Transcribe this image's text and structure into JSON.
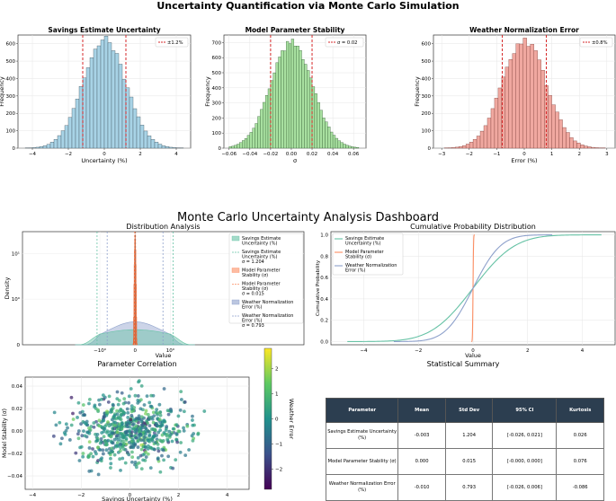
{
  "suptitle": "Uncertainty Quantification via Monte Carlo Simulation",
  "dashboard_title": "Monte Carlo Uncertainty Analysis Dashboard",
  "colors": {
    "blue_fill": "#a8d3e6",
    "blue_edge": "#3b4a55",
    "green_fill": "#a8e0a0",
    "green_edge": "#2f5a2f",
    "red_fill": "#f0a8a0",
    "red_edge": "#7a3a34",
    "vline": "#d62728",
    "teal": "#66c2a5",
    "orange": "#fc8d62",
    "purple": "#8da0cb",
    "table_header": "#2c3e50"
  },
  "chart_data": [
    {
      "id": "h1",
      "type": "bar",
      "title": "Savings Estimate Uncertainty",
      "xlabel": "Uncertainty (%)",
      "ylabel": "Frequency",
      "xlim": [
        -4.8,
        4.8
      ],
      "ylim": [
        0,
        650
      ],
      "xticks": [
        -4,
        -2,
        0,
        2,
        4
      ],
      "yticks": [
        0,
        100,
        200,
        300,
        400,
        500,
        600
      ],
      "mean": 0,
      "sd": 1.2,
      "peak": 625,
      "bin_start": -4.4,
      "bin_width": 0.2,
      "bin_count": 44,
      "vlines": [
        -1.2,
        1.2
      ],
      "legend": "±1.2%"
    },
    {
      "id": "h2",
      "type": "bar",
      "title": "Model Parameter Stability",
      "xlabel": "σ",
      "ylabel": "Frequency",
      "xlim": [
        -0.065,
        0.072
      ],
      "ylim": [
        0,
        750
      ],
      "xticks": [
        -0.06,
        -0.04,
        -0.02,
        0.0,
        0.02,
        0.04,
        0.06
      ],
      "xtick_labels": [
        "-0.06",
        "-0.04",
        "-0.02",
        "0.00",
        "0.02",
        "0.04",
        "0.06"
      ],
      "yticks": [
        0,
        100,
        200,
        300,
        400,
        500,
        600,
        700
      ],
      "mean": 0,
      "sd": 0.02,
      "peak": 705,
      "bin_start": -0.06,
      "bin_width": 0.0025,
      "bin_count": 50,
      "vlines": [
        -0.02,
        0.02
      ],
      "legend": "σ = 0.02"
    },
    {
      "id": "h3",
      "type": "bar",
      "title": "Weather Normalization Error",
      "xlabel": "Error (%)",
      "ylabel": "Frequency",
      "xlim": [
        -3.3,
        3.3
      ],
      "ylim": [
        0,
        650
      ],
      "xticks": [
        -3,
        -2,
        -1,
        0,
        1,
        2,
        3
      ],
      "yticks": [
        0,
        100,
        200,
        300,
        400,
        500,
        600
      ],
      "mean": 0,
      "sd": 0.8,
      "peak": 620,
      "bin_start": -2.9,
      "bin_width": 0.13,
      "bin_count": 45,
      "vlines": [
        -0.8,
        0.8
      ],
      "legend": "±0.8%"
    },
    {
      "id": "dist",
      "type": "area",
      "title": "Distribution Analysis",
      "xlabel": "Value",
      "ylabel": "Density",
      "xscale": "symlog",
      "yscale": "symlog",
      "xtick_labels": [
        "−10⁰",
        "0",
        "10⁰"
      ],
      "ytick_labels": [
        "0",
        "10⁰",
        "10¹"
      ],
      "legend": [
        "Savings Estimate Uncertainty (%)",
        "Savings Estimate Uncertainty (%) σ = 1.204",
        "Model Parameter Stability (σ)",
        "Model Parameter Stability (σ) σ = 0.015",
        "Weather Normalization Error (%)",
        "Weather Normalization Error (%) σ = 0.793"
      ]
    },
    {
      "id": "cdf",
      "type": "line",
      "title": "Cumulative Probability Distribution",
      "xlabel": "Value",
      "ylabel": "Cumulative Probability",
      "xlim": [
        -5.2,
        5.2
      ],
      "ylim": [
        -0.03,
        1.03
      ],
      "xticks": [
        -4,
        -2,
        0,
        2,
        4
      ],
      "yticks": [
        0.0,
        0.2,
        0.4,
        0.6,
        0.8,
        1.0
      ],
      "series": [
        {
          "name": "Savings Estimate Uncertainty (%)",
          "sd": 1.204,
          "min": -4.6,
          "max": 4.7
        },
        {
          "name": "Model Parameter Stability (σ)",
          "sd": 0.015,
          "min": -0.06,
          "max": 0.06
        },
        {
          "name": "Weather Normalization Error (%)",
          "sd": 0.793,
          "min": -2.9,
          "max": 2.9
        }
      ]
    },
    {
      "id": "scatter",
      "type": "scatter",
      "title": "Parameter Correlation",
      "xlabel": "Savings Uncertainty (%)",
      "ylabel": "Model Stability (σ)",
      "colorbar_label": "Weather Error",
      "xlim": [
        -4.3,
        4.9
      ],
      "ylim": [
        -0.052,
        0.048
      ],
      "xticks": [
        -4,
        -2,
        0,
        2,
        4
      ],
      "yticks": [
        -0.04,
        -0.02,
        0.0,
        0.02,
        0.04
      ],
      "ytick_labels": [
        "−0.04",
        "−0.02",
        "0.00",
        "0.02",
        "0.04"
      ],
      "cbar_ticks": [
        2,
        1,
        0,
        -1,
        -2
      ],
      "cbar_range": [
        -2.8,
        2.8
      ],
      "n_points": 650,
      "x_sd": 1.2,
      "y_sd": 0.015,
      "c_sd": 0.8
    }
  ],
  "stats_title": "Statistical Summary",
  "table": {
    "headers": [
      "Parameter",
      "Mean",
      "Std Dev",
      "95% CI",
      "Kurtosis"
    ],
    "rows": [
      [
        "Savings Estimate Uncertainty (%)",
        "-0.003",
        "1.204",
        "[-0.026, 0.021]",
        "0.026"
      ],
      [
        "Model Parameter Stability (σ)",
        "0.000",
        "0.015",
        "[-0.000, 0.000]",
        "0.076"
      ],
      [
        "Weather Normalization Error (%)",
        "-0.010",
        "0.793",
        "[-0.026, 0.006]",
        "-0.086"
      ]
    ]
  }
}
